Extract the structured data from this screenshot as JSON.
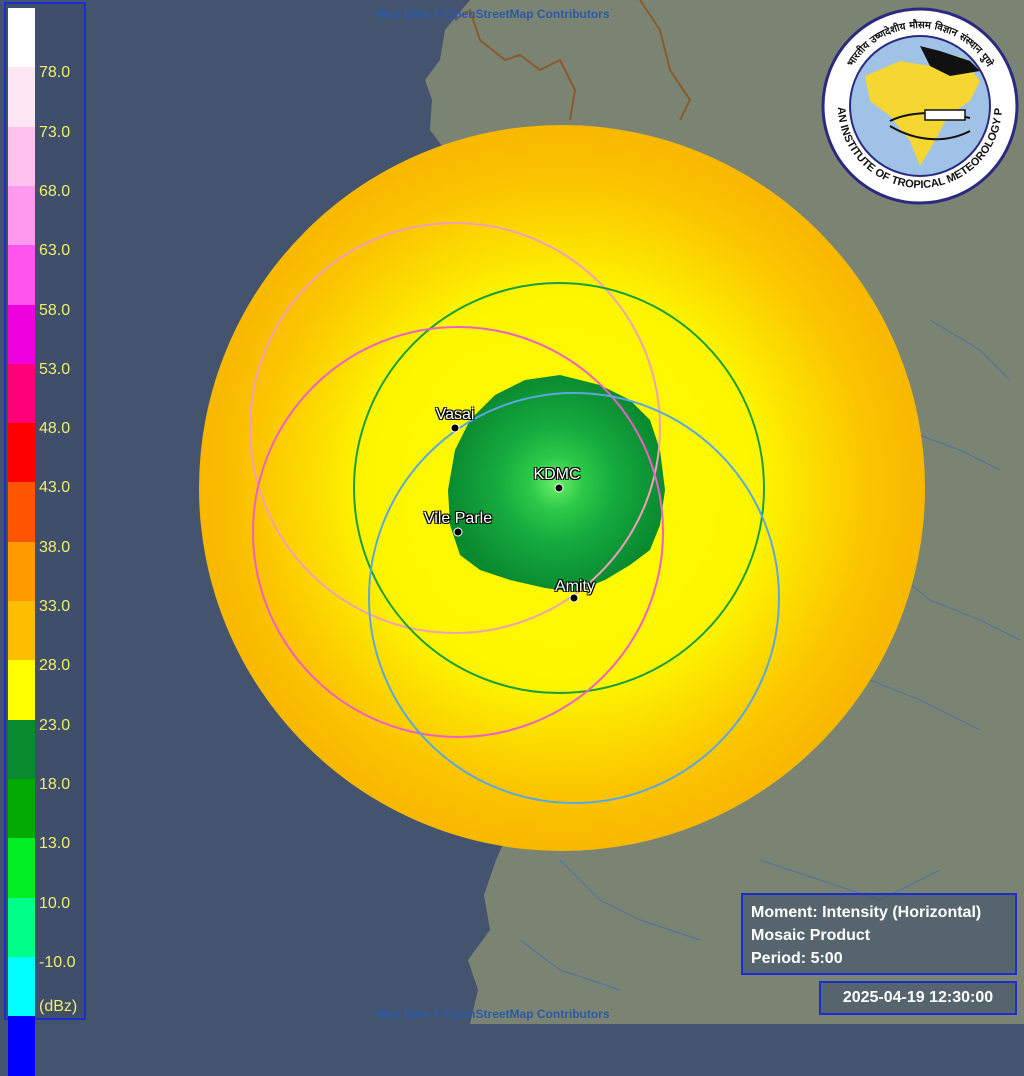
{
  "map": {
    "attribution_top": "Map Data © OpenStreetMap Contributors",
    "attribution_bottom": "Map Data © OpenStreetMap Contributors",
    "colors": {
      "sea": "#44546f",
      "land": "#7b8473",
      "radar_orange": "#fbbe00",
      "radar_yellow": "#fdfd00",
      "radar_green": "#0ea53b",
      "radar_core": "#47e05a"
    }
  },
  "legend": {
    "unit": "(dBz)",
    "labels": [
      "78.0",
      "73.0",
      "68.0",
      "63.0",
      "58.0",
      "53.0",
      "48.0",
      "43.0",
      "38.0",
      "33.0",
      "28.0",
      "23.0",
      "18.0",
      "13.0",
      "10.0",
      "-10.0"
    ],
    "colors": [
      "#ffffff",
      "#ffe6f5",
      "#ffc2ef",
      "#ff99ee",
      "#ff55ee",
      "#ee00dd",
      "#ff0077",
      "#ff0000",
      "#ff5500",
      "#ff9900",
      "#fbbe00",
      "#ffff00",
      "#0a8a2e",
      "#00aa00",
      "#00ee22",
      "#00ff88",
      "#00ffff",
      "#0000ff"
    ]
  },
  "info": {
    "moment": "Moment: Intensity (Horizontal)",
    "product": "Mosaic Product",
    "period": "Period: 5:00"
  },
  "timestamp": "2025-04-19 12:30:00",
  "stations": [
    {
      "name": "Vasai",
      "ring_color": "#f0a0b8"
    },
    {
      "name": "KDMC",
      "ring_color": "#1aa038"
    },
    {
      "name": "Vile Parle",
      "ring_color": "#ee60c8"
    },
    {
      "name": "Amity",
      "ring_color": "#5aa8e0"
    }
  ],
  "logo": {
    "text": "INDIAN INSTITUTE OF TROPICAL METEOROLOGY PUNE",
    "hindi_text": "भारतीय उष्णदेशीय मौसम विज्ञान संस्थान पुणे"
  }
}
